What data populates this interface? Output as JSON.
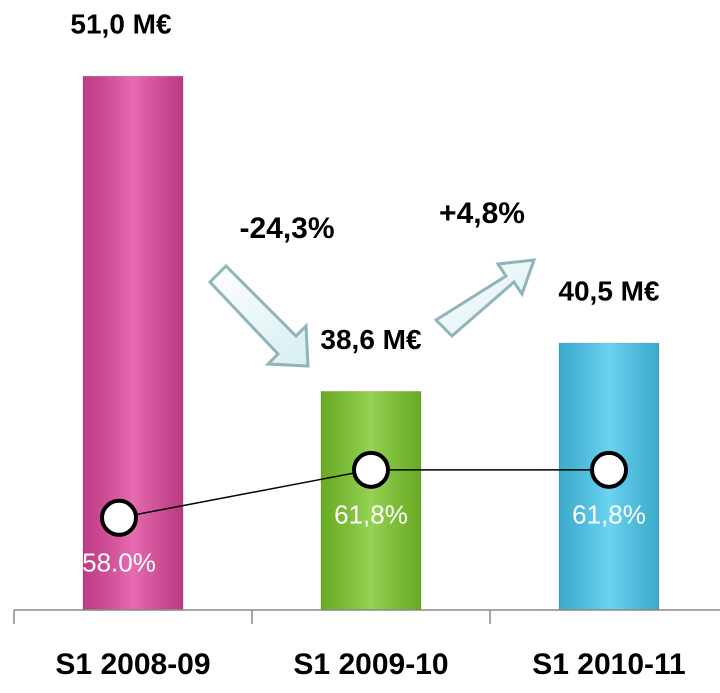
{
  "chart_data": {
    "type": "bar",
    "categories": [
      "S1 2008-09",
      "S1 2009-10",
      "S1 2010-11"
    ],
    "series": [
      {
        "type": "bar",
        "colors": [
          "#e0469c",
          "#7cc92a",
          "#47c9ef"
        ],
        "values": [
          51.0,
          38.6,
          40.5
        ],
        "value_labels": [
          "51,0 M€",
          "38,6 M€",
          "40,5 M€"
        ]
      },
      {
        "type": "line",
        "axis": "y2",
        "color": "#000000",
        "values": [
          58.0,
          61.8,
          61.8
        ],
        "value_labels": [
          "58.0%",
          "61,8%",
          "61,8%"
        ]
      }
    ],
    "ylim": [
      30,
      54
    ],
    "y2lim": [
      50.7,
      99
    ],
    "annotations": [
      "-24,3%",
      "+4,8%"
    ]
  }
}
